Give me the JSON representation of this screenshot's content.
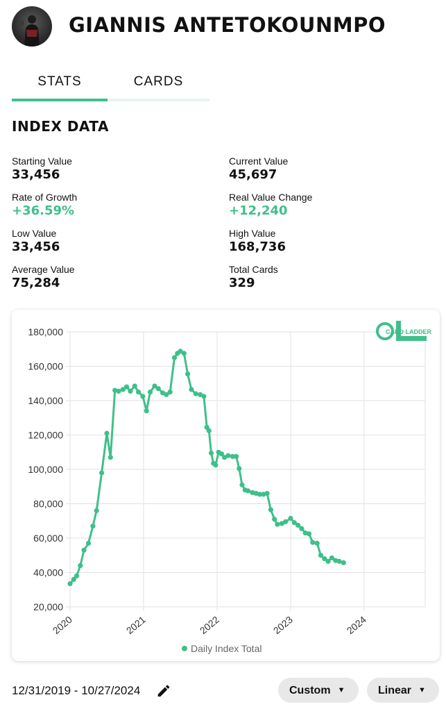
{
  "player": {
    "name": "GIANNIS ANTETOKOUNMPO"
  },
  "tabs": [
    {
      "label": "STATS"
    },
    {
      "label": "CARDS"
    }
  ],
  "index": {
    "title": "INDEX DATA",
    "stats": [
      {
        "label": "Starting Value",
        "value": "33,456"
      },
      {
        "label": "Current Value",
        "value": "45,697"
      },
      {
        "label": "Rate of Growth",
        "value": "+36.59%"
      },
      {
        "label": "Real Value Change",
        "value": "+12,240"
      },
      {
        "label": "Low Value",
        "value": "33,456"
      },
      {
        "label": "High Value",
        "value": "168,736"
      },
      {
        "label": "Average Value",
        "value": "75,284"
      },
      {
        "label": "Total Cards",
        "value": "329"
      }
    ]
  },
  "brand": {
    "logo_text": "CARD LADDER"
  },
  "colors": {
    "accent": "#3fbf8a",
    "tab_inactive": "#e6f5ee",
    "pill_bg": "#e8e8e8"
  },
  "icons": {
    "edit": "pencil-icon",
    "dropdown": "caret-down-icon"
  },
  "controls": {
    "date_range": "12/31/2019 - 10/27/2024",
    "mode_label": "Custom",
    "scale_label": "Linear"
  },
  "chart_data": {
    "type": "line",
    "legend": "Daily Index Total",
    "legend_position": "bottom",
    "ylim": [
      20000,
      180000
    ],
    "y_ticks": [
      20000,
      40000,
      60000,
      80000,
      100000,
      120000,
      140000,
      160000,
      180000
    ],
    "y_tick_labels": [
      "20,000",
      "40,000",
      "60,000",
      "80,000",
      "100,000",
      "120,000",
      "140,000",
      "160,000",
      "180,000"
    ],
    "xlim": [
      2020.0,
      2024.83
    ],
    "x_ticks": [
      2020,
      2021,
      2022,
      2023,
      2024
    ],
    "x_tick_labels": [
      "2020",
      "2021",
      "2022",
      "2023",
      "2024"
    ],
    "grid": true,
    "series": [
      {
        "name": "Daily Index Total",
        "points": [
          [
            2020.0,
            33456
          ],
          [
            2020.05,
            36000
          ],
          [
            2020.09,
            38000
          ],
          [
            2020.14,
            44000
          ],
          [
            2020.19,
            53000
          ],
          [
            2020.25,
            57000
          ],
          [
            2020.31,
            67000
          ],
          [
            2020.36,
            76000
          ],
          [
            2020.43,
            98000
          ],
          [
            2020.5,
            121000
          ],
          [
            2020.55,
            107000
          ],
          [
            2020.61,
            146000
          ],
          [
            2020.66,
            145500
          ],
          [
            2020.72,
            146500
          ],
          [
            2020.77,
            148000
          ],
          [
            2020.82,
            145500
          ],
          [
            2020.88,
            148500
          ],
          [
            2020.93,
            145000
          ],
          [
            2020.99,
            142500
          ],
          [
            2021.04,
            134000
          ],
          [
            2021.09,
            145000
          ],
          [
            2021.15,
            148500
          ],
          [
            2021.2,
            147000
          ],
          [
            2021.26,
            144500
          ],
          [
            2021.31,
            143500
          ],
          [
            2021.36,
            145000
          ],
          [
            2021.42,
            165000
          ],
          [
            2021.46,
            167500
          ],
          [
            2021.5,
            168736
          ],
          [
            2021.55,
            167500
          ],
          [
            2021.6,
            155500
          ],
          [
            2021.65,
            146500
          ],
          [
            2021.71,
            144000
          ],
          [
            2021.77,
            143500
          ],
          [
            2021.82,
            142500
          ],
          [
            2021.86,
            124500
          ],
          [
            2021.89,
            122500
          ],
          [
            2021.92,
            109500
          ],
          [
            2021.95,
            103500
          ],
          [
            2021.98,
            102500
          ],
          [
            2022.02,
            110000
          ],
          [
            2022.06,
            109000
          ],
          [
            2022.1,
            107000
          ],
          [
            2022.15,
            108000
          ],
          [
            2022.21,
            107500
          ],
          [
            2022.26,
            107500
          ],
          [
            2022.3,
            100500
          ],
          [
            2022.34,
            91000
          ],
          [
            2022.38,
            88000
          ],
          [
            2022.42,
            87500
          ],
          [
            2022.48,
            86500
          ],
          [
            2022.53,
            86000
          ],
          [
            2022.58,
            85500
          ],
          [
            2022.63,
            85500
          ],
          [
            2022.68,
            86000
          ],
          [
            2022.73,
            76500
          ],
          [
            2022.78,
            71000
          ],
          [
            2022.82,
            68000
          ],
          [
            2022.88,
            68500
          ],
          [
            2022.93,
            69500
          ],
          [
            2023.0,
            71500
          ],
          [
            2023.05,
            69000
          ],
          [
            2023.1,
            67500
          ],
          [
            2023.15,
            65500
          ],
          [
            2023.2,
            63000
          ],
          [
            2023.25,
            62500
          ],
          [
            2023.3,
            57500
          ],
          [
            2023.36,
            57000
          ],
          [
            2023.41,
            50000
          ],
          [
            2023.46,
            48000
          ],
          [
            2023.51,
            46500
          ],
          [
            2023.56,
            48500
          ],
          [
            2023.61,
            47000
          ],
          [
            2023.66,
            46500
          ],
          [
            2023.72,
            45697
          ]
        ]
      }
    ]
  }
}
